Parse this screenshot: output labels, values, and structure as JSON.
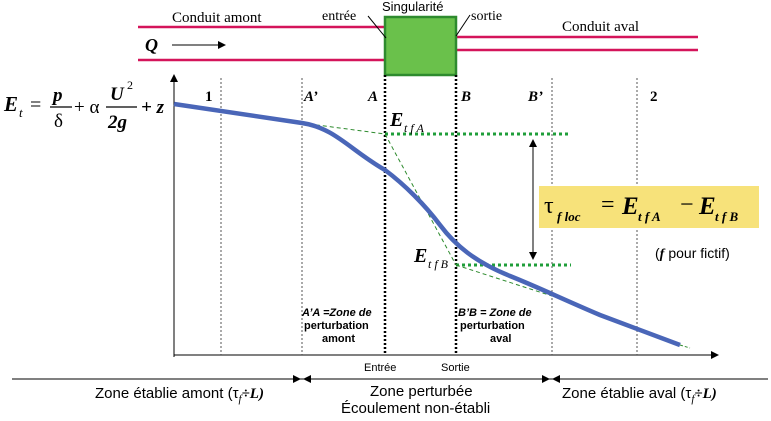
{
  "pipe": {
    "upstream_label": "Conduit amont",
    "inlet_label": "entrée",
    "singularity_label": "Singularité",
    "outlet_label": "sortie",
    "downstream_label": "Conduit aval",
    "flow_symbol": "Q"
  },
  "equation": {
    "lhs": "E",
    "lhs_sub": "t",
    "num_p": "p",
    "den_delta": "δ",
    "plus_alpha": "+ α",
    "num_U": "U",
    "num_exp": "2",
    "den_2g": "2g",
    "plus_z": "+ z"
  },
  "sections": {
    "s1": "1",
    "a_prime": "A’",
    "a": "A",
    "b": "B",
    "b_prime": "B’",
    "s2": "2"
  },
  "energy_labels": {
    "eA": "E",
    "eA_sub": "t f A",
    "eB": "E",
    "eB_sub": "t f B"
  },
  "formula": {
    "tau": "τ",
    "tau_sub": "f loc",
    "equals": "=",
    "e1": "E",
    "e1_sub": "t f A",
    "minus": "−",
    "e2": "E",
    "e2_sub": "t f B"
  },
  "fictif_note": {
    "f": "f",
    "text": "pour fictif)",
    "open": "("
  },
  "zone_upstream": {
    "line1": "A’A =Zone de",
    "line2": "perturbation",
    "line3": "amont"
  },
  "zone_downstream": {
    "line1": "B’B = Zone de",
    "line2": "perturbation",
    "line3": "aval"
  },
  "axis_labels": {
    "entree": "Entrée",
    "sortie": "Sortie"
  },
  "bottom_zones": {
    "established_upstream": "Zone établie amont (τ",
    "established_upstream_sub": "f",
    "established_upstream_tail": "÷L)",
    "perturbed": "Zone perturbée",
    "non_established": "Écoulement non-établi",
    "established_downstream": "Zone établie aval (τ",
    "established_downstream_sub": "f",
    "established_downstream_tail": "÷L)"
  },
  "colors": {
    "pipe": "#d4145a",
    "singularity_fill": "#6ac14b",
    "singularity_stroke": "#2e8b2e",
    "energy_line": "#4a66b8",
    "dotted_green": "#1f9e3a",
    "dashed_green": "#2e8b2e",
    "formula_bg": "#f7e27a"
  }
}
